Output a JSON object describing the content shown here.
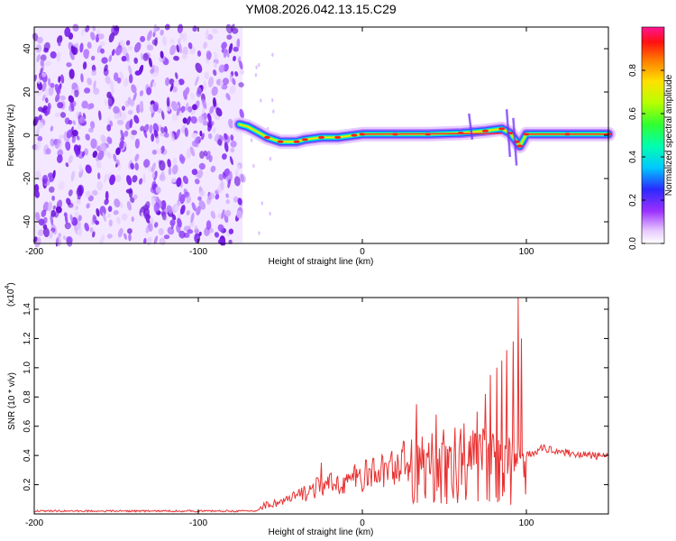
{
  "title": "YM08.2026.042.13.15.C29",
  "chart_data": [
    {
      "type": "heatmap",
      "xlabel": "Height of straight line (km)",
      "ylabel": "Frequency (Hz)",
      "xlim": [
        -200,
        150
      ],
      "ylim": [
        -50,
        50
      ],
      "xticks": [
        -200,
        -100,
        0,
        100
      ],
      "yticks": [
        -40,
        -20,
        0,
        20,
        40
      ],
      "colorbar": {
        "label": "Normalized spectral amplitude",
        "range": [
          0,
          1
        ],
        "ticks": [
          "0.0",
          "0.2",
          "0.4",
          "0.6",
          "0.8"
        ]
      },
      "noise_region_x": [
        -200,
        -73
      ],
      "ridge": [
        {
          "x": -75,
          "y": 5
        },
        {
          "x": -70,
          "y": 4
        },
        {
          "x": -65,
          "y": 2
        },
        {
          "x": -58,
          "y": -1
        },
        {
          "x": -50,
          "y": -3
        },
        {
          "x": -40,
          "y": -3
        },
        {
          "x": -35,
          "y": -2
        },
        {
          "x": -25,
          "y": -1
        },
        {
          "x": -15,
          "y": -1
        },
        {
          "x": -5,
          "y": 0
        },
        {
          "x": 0,
          "y": 0.5
        },
        {
          "x": 20,
          "y": 0.5
        },
        {
          "x": 40,
          "y": 0.5
        },
        {
          "x": 60,
          "y": 1
        },
        {
          "x": 75,
          "y": 2
        },
        {
          "x": 85,
          "y": 3
        },
        {
          "x": 90,
          "y": 1
        },
        {
          "x": 94,
          "y": -3
        },
        {
          "x": 96,
          "y": -5
        },
        {
          "x": 100,
          "y": 0.5
        },
        {
          "x": 125,
          "y": 0.5
        },
        {
          "x": 150,
          "y": 0.5
        }
      ]
    },
    {
      "type": "line",
      "xlabel": "Height of straight line (km)",
      "ylabel": "SNR (10 * v/v)",
      "yscale_label": "(x10",
      "yscale_exp": "4",
      "yscale_close": ")",
      "xlim": [
        -200,
        150
      ],
      "ylim": [
        0,
        1.48
      ],
      "xticks": [
        -200,
        -100,
        0,
        100
      ],
      "yticks": [
        "0.2",
        "0.4",
        "0.6",
        "0.8",
        "1.0",
        "1.2",
        "1.4"
      ],
      "series_color": "#e83232",
      "envelope": [
        {
          "x": -200,
          "y": 0.02
        },
        {
          "x": -65,
          "y": 0.02
        },
        {
          "x": -60,
          "y": 0.06
        },
        {
          "x": -45,
          "y": 0.1
        },
        {
          "x": -30,
          "y": 0.18
        },
        {
          "x": -15,
          "y": 0.22
        },
        {
          "x": 0,
          "y": 0.27
        },
        {
          "x": 15,
          "y": 0.32
        },
        {
          "x": 30,
          "y": 0.4
        },
        {
          "x": 50,
          "y": 0.45
        },
        {
          "x": 70,
          "y": 0.47
        },
        {
          "x": 90,
          "y": 0.4
        },
        {
          "x": 100,
          "y": 0.4
        },
        {
          "x": 110,
          "y": 0.45
        },
        {
          "x": 130,
          "y": 0.41
        },
        {
          "x": 150,
          "y": 0.39
        }
      ],
      "spikes": [
        {
          "x": -25,
          "y": 0.35
        },
        {
          "x": 33,
          "y": 0.75
        },
        {
          "x": 45,
          "y": 0.68
        },
        {
          "x": 62,
          "y": 0.62
        },
        {
          "x": 70,
          "y": 0.7
        },
        {
          "x": 75,
          "y": 0.82
        },
        {
          "x": 78,
          "y": 0.95
        },
        {
          "x": 82,
          "y": 1.0
        },
        {
          "x": 85,
          "y": 1.05
        },
        {
          "x": 88,
          "y": 1.12
        },
        {
          "x": 92,
          "y": 1.18
        },
        {
          "x": 95,
          "y": 1.48
        },
        {
          "x": 97,
          "y": 1.2
        }
      ]
    }
  ]
}
